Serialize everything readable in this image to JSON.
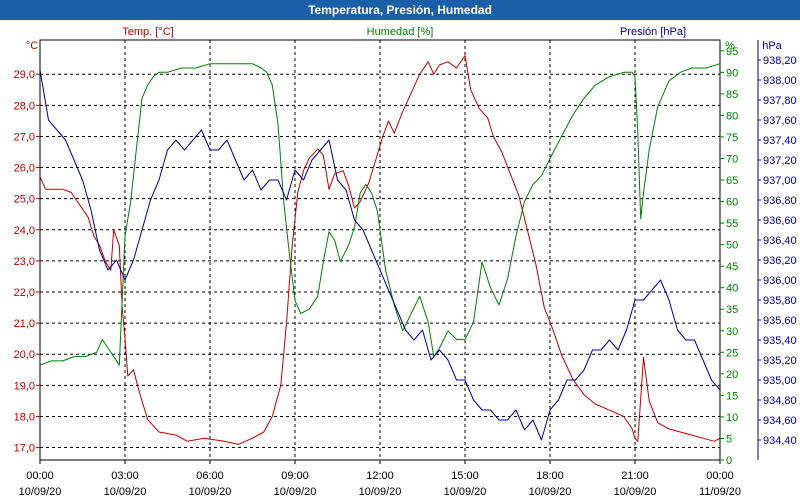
{
  "window": {
    "title": "Temperatura, Presión, Humedad"
  },
  "colors": {
    "temperature": "#c00000",
    "humidity": "#008000",
    "pressure": "#000099",
    "grid": "#000000",
    "titlebar": "#1a5fa8"
  },
  "chart_data": {
    "type": "line",
    "title": "Temperatura, Presión, Humedad",
    "grid": true,
    "x_ticks": [
      {
        "time": "00:00",
        "date": "10/09/20",
        "hour": 0
      },
      {
        "time": "03:00",
        "date": "10/09/20",
        "hour": 3
      },
      {
        "time": "06:00",
        "date": "10/09/20",
        "hour": 6
      },
      {
        "time": "09:00",
        "date": "10/09/20",
        "hour": 9
      },
      {
        "time": "12:00",
        "date": "10/09/20",
        "hour": 12
      },
      {
        "time": "15:00",
        "date": "10/09/20",
        "hour": 15
      },
      {
        "time": "18:00",
        "date": "10/09/20",
        "hour": 18
      },
      {
        "time": "21:00",
        "date": "10/09/20",
        "hour": 21
      },
      {
        "time": "00:00",
        "date": "11/09/20",
        "hour": 24
      }
    ],
    "xlim": [
      0,
      24
    ],
    "axes": {
      "temperature": {
        "unit": "°C",
        "label": "Temp. [°C]",
        "ylim": [
          16.6,
          30.1
        ],
        "ticks": [
          "17,0",
          "18,0",
          "19,0",
          "20,0",
          "21,0",
          "22,0",
          "23,0",
          "24,0",
          "25,0",
          "26,0",
          "27,0",
          "28,0",
          "29,0"
        ]
      },
      "humidity": {
        "unit": "%",
        "label": "Humedad [%]",
        "ylim": [
          0,
          97.5
        ],
        "ticks": [
          "0",
          "5",
          "10",
          "15",
          "20",
          "25",
          "30",
          "35",
          "40",
          "45",
          "50",
          "55",
          "60",
          "65",
          "70",
          "75",
          "80",
          "85",
          "90",
          "95"
        ]
      },
      "pressure": {
        "unit": "hPa",
        "label": "Presión [hPa]",
        "ylim": [
          934.2,
          938.4
        ],
        "ticks": [
          "934,40",
          "934,60",
          "934,80",
          "935,00",
          "935,20",
          "935,40",
          "935,60",
          "935,80",
          "936,00",
          "936,20",
          "936,40",
          "936,60",
          "936,80",
          "937,00",
          "937,20",
          "937,40",
          "937,60",
          "937,80",
          "938,00",
          "938,20"
        ]
      }
    },
    "series": [
      {
        "name": "Temp. [°C]",
        "axis": "temperature",
        "x": [
          0,
          0.2,
          0.5,
          0.8,
          1.1,
          1.4,
          1.7,
          1.9,
          2.1,
          2.3,
          2.5,
          2.6,
          2.8,
          2.9,
          3.0,
          3.1,
          3.3,
          3.5,
          3.8,
          4.2,
          4.8,
          5.2,
          5.8,
          6.5,
          7.0,
          7.5,
          7.9,
          8.2,
          8.5,
          8.7,
          8.9,
          9.1,
          9.3,
          9.5,
          9.8,
          10.0,
          10.2,
          10.4,
          10.7,
          10.9,
          11.1,
          11.3,
          11.6,
          11.9,
          12.1,
          12.3,
          12.5,
          12.8,
          13.1,
          13.4,
          13.7,
          13.9,
          14.1,
          14.4,
          14.7,
          15.0,
          15.2,
          15.5,
          15.8,
          16.0,
          16.3,
          16.6,
          16.9,
          17.2,
          17.5,
          17.8,
          18.1,
          18.4,
          18.8,
          19.2,
          19.6,
          20.1,
          20.6,
          20.9,
          21.0,
          21.1,
          21.3,
          21.5,
          21.8,
          22.2,
          22.6,
          23.0,
          23.4,
          23.8,
          24.0
        ],
        "values": [
          25.7,
          25.3,
          25.3,
          25.3,
          25.2,
          24.8,
          24.4,
          23.8,
          23.5,
          23.0,
          22.7,
          24.0,
          23.5,
          21.5,
          20.5,
          19.3,
          19.5,
          18.8,
          17.9,
          17.5,
          17.4,
          17.2,
          17.3,
          17.2,
          17.1,
          17.3,
          17.5,
          18.0,
          19.0,
          21.0,
          23.5,
          25.2,
          25.9,
          26.3,
          26.6,
          26.4,
          25.3,
          25.8,
          25.9,
          25.4,
          24.7,
          24.9,
          25.5,
          26.4,
          27.0,
          27.5,
          27.1,
          27.8,
          28.4,
          29.0,
          29.4,
          29.0,
          29.3,
          29.4,
          29.2,
          29.6,
          28.5,
          27.9,
          27.6,
          27.0,
          26.5,
          25.8,
          25.1,
          24.0,
          22.9,
          21.5,
          20.8,
          20.0,
          19.2,
          18.7,
          18.4,
          18.2,
          18.0,
          17.6,
          17.3,
          17.2,
          19.9,
          18.5,
          17.8,
          17.6,
          17.5,
          17.4,
          17.3,
          17.2,
          17.3
        ]
      },
      {
        "name": "Humedad [%]",
        "axis": "humidity",
        "x": [
          0,
          0.4,
          0.8,
          1.2,
          1.6,
          2.0,
          2.2,
          2.4,
          2.6,
          2.8,
          3.0,
          3.1,
          3.2,
          3.4,
          3.6,
          3.8,
          4.0,
          4.2,
          4.5,
          5.0,
          5.5,
          6.0,
          6.5,
          7.0,
          7.5,
          7.8,
          8.0,
          8.2,
          8.4,
          8.6,
          8.8,
          9.0,
          9.2,
          9.5,
          9.8,
          10.0,
          10.2,
          10.4,
          10.6,
          10.9,
          11.1,
          11.3,
          11.5,
          11.7,
          11.9,
          12.2,
          12.5,
          12.8,
          13.1,
          13.4,
          13.7,
          13.9,
          14.1,
          14.4,
          14.7,
          15.0,
          15.3,
          15.6,
          15.9,
          16.2,
          16.5,
          16.8,
          17.1,
          17.4,
          17.7,
          18.0,
          18.4,
          18.8,
          19.2,
          19.6,
          20.1,
          20.6,
          20.9,
          21.0,
          21.1,
          21.2,
          21.3,
          21.5,
          21.8,
          22.2,
          22.6,
          23.0,
          23.5,
          24.0
        ],
        "values": [
          22,
          23,
          23,
          24,
          24,
          25,
          28,
          26,
          24,
          22,
          52,
          56,
          60,
          72,
          84,
          87,
          89,
          90,
          90,
          91,
          91,
          92,
          92,
          92,
          92,
          91,
          90,
          87,
          78,
          60,
          48,
          37,
          34,
          35,
          38,
          46,
          53,
          51,
          46,
          50,
          54,
          62,
          64,
          62,
          58,
          44,
          36,
          30,
          34,
          38,
          32,
          24,
          26,
          30,
          28,
          28,
          32,
          46,
          40,
          36,
          42,
          52,
          60,
          64,
          66,
          70,
          75,
          80,
          84,
          87,
          89,
          90,
          90,
          89,
          76,
          56,
          62,
          72,
          82,
          88,
          90,
          91,
          91,
          92
        ]
      },
      {
        "name": "Presión [hPa]",
        "axis": "pressure",
        "x": [
          0,
          0.3,
          0.6,
          0.9,
          1.2,
          1.5,
          1.8,
          2.1,
          2.4,
          2.7,
          3.0,
          3.3,
          3.6,
          3.9,
          4.2,
          4.5,
          4.8,
          5.1,
          5.4,
          5.7,
          6.0,
          6.3,
          6.6,
          6.9,
          7.2,
          7.5,
          7.8,
          8.1,
          8.4,
          8.7,
          9.0,
          9.3,
          9.6,
          9.9,
          10.2,
          10.5,
          10.8,
          11.1,
          11.4,
          11.7,
          12.0,
          12.3,
          12.6,
          12.9,
          13.2,
          13.5,
          13.8,
          14.1,
          14.4,
          14.7,
          15.0,
          15.3,
          15.6,
          15.9,
          16.2,
          16.5,
          16.8,
          17.1,
          17.4,
          17.7,
          18.0,
          18.3,
          18.6,
          18.9,
          19.2,
          19.5,
          19.8,
          20.1,
          20.4,
          20.7,
          21.0,
          21.3,
          21.6,
          21.9,
          22.2,
          22.5,
          22.8,
          23.1,
          23.4,
          23.7,
          24.0
        ],
        "values": [
          938.1,
          937.6,
          937.5,
          937.4,
          937.2,
          937.0,
          936.7,
          936.3,
          936.1,
          936.2,
          936.0,
          936.2,
          936.5,
          936.8,
          937.0,
          937.3,
          937.4,
          937.3,
          937.4,
          937.5,
          937.3,
          937.3,
          937.4,
          937.2,
          937.0,
          937.1,
          936.9,
          937.0,
          937.0,
          936.8,
          937.1,
          937.0,
          937.2,
          937.3,
          937.4,
          937.0,
          936.9,
          936.6,
          936.5,
          936.3,
          936.1,
          935.9,
          935.7,
          935.5,
          935.4,
          935.5,
          935.2,
          935.3,
          935.2,
          935.0,
          935.0,
          934.8,
          934.7,
          934.7,
          934.6,
          934.6,
          934.7,
          934.5,
          934.6,
          934.4,
          934.7,
          934.8,
          935.0,
          935.0,
          935.1,
          935.3,
          935.3,
          935.4,
          935.3,
          935.5,
          935.8,
          935.8,
          935.9,
          936.0,
          935.8,
          935.5,
          935.4,
          935.4,
          935.2,
          935.0,
          934.9
        ]
      }
    ]
  }
}
